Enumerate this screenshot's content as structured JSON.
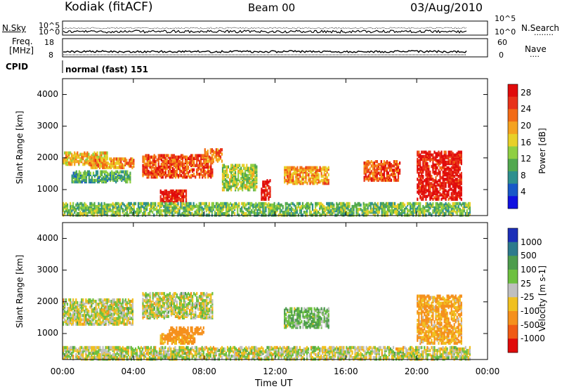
{
  "header": {
    "station": "Kodiak (fitACF)",
    "beam": "Beam 00",
    "date": "03/Aug/2010"
  },
  "strip_labels": {
    "nsky": "N.Sky",
    "nsearch": "N.Search",
    "nsearch_marker": "........",
    "freq_line1": "Freq.",
    "freq_line2": "[MHz]",
    "nave": "Nave",
    "nave_marker": "....",
    "cpid": "CPID",
    "cpid_value": "normal (fast) 151"
  },
  "strip_ticks": {
    "noise_left": [
      "10^5",
      "10^0"
    ],
    "noise_right": [
      "10^5",
      "10^0"
    ],
    "freq_left": [
      "18",
      "8"
    ],
    "nave_right": [
      "60",
      "0"
    ]
  },
  "chart_data": [
    {
      "type": "heatmap",
      "name": "power",
      "ylabel": "Slant Range [km]",
      "ylim": [
        180,
        4500
      ],
      "y_ticks": [
        1000,
        2000,
        3000,
        4000
      ],
      "x_ticks": [
        "00:00",
        "04:00",
        "08:00",
        "12:00",
        "16:00",
        "20:00",
        "00:00"
      ],
      "xlim_hours": [
        0,
        24
      ],
      "colorbar": {
        "label": "Power [dB]",
        "ticks": [
          "4",
          "8",
          "12",
          "16",
          "20",
          "24",
          "28"
        ],
        "range": [
          0,
          30
        ],
        "colors": [
          "#1010e0",
          "#1858c8",
          "#2e8f8e",
          "#52a84f",
          "#8fcf42",
          "#e8d028",
          "#f5a21f",
          "#f26b16",
          "#e8321a",
          "#e00b0b"
        ]
      },
      "regions": [
        {
          "t": [
            0,
            2.5
          ],
          "r": [
            1800,
            2200
          ],
          "value": 18
        },
        {
          "t": [
            0.5,
            3.8
          ],
          "r": [
            1250,
            1600
          ],
          "value": 10
        },
        {
          "t": [
            1.5,
            4
          ],
          "r": [
            1700,
            2000
          ],
          "value": 20
        },
        {
          "t": [
            4.5,
            8.5
          ],
          "r": [
            1400,
            2100
          ],
          "value": 24
        },
        {
          "t": [
            5.5,
            7
          ],
          "r": [
            600,
            1000
          ],
          "value": 28
        },
        {
          "t": [
            8,
            9
          ],
          "r": [
            1900,
            2300
          ],
          "value": 22
        },
        {
          "t": [
            9,
            11
          ],
          "r": [
            1000,
            1800
          ],
          "value": 14
        },
        {
          "t": [
            11.2,
            11.7
          ],
          "r": [
            700,
            1300
          ],
          "value": 28
        },
        {
          "t": [
            12.5,
            15
          ],
          "r": [
            1200,
            1700
          ],
          "value": 20
        },
        {
          "t": [
            17,
            19
          ],
          "r": [
            1300,
            1900
          ],
          "value": 24
        },
        {
          "t": [
            20,
            22.5
          ],
          "r": [
            700,
            2200
          ],
          "value": 28
        },
        {
          "t": [
            0,
            23
          ],
          "r": [
            200,
            600
          ],
          "value": 12
        }
      ]
    },
    {
      "type": "heatmap",
      "name": "velocity",
      "ylabel": "Slant Range [km]",
      "ylim": [
        180,
        4500
      ],
      "y_ticks": [
        1000,
        2000,
        3000,
        4000
      ],
      "x_ticks": [
        "00:00",
        "04:00",
        "08:00",
        "12:00",
        "16:00",
        "20:00",
        "00:00"
      ],
      "xlabel": "Time UT",
      "xlim_hours": [
        0,
        24
      ],
      "colorbar": {
        "label": "Velocity [m s-1]",
        "ticks": [
          "1000",
          "500",
          "100",
          "25",
          "-25",
          "-100",
          "-500",
          "-1000"
        ],
        "colors": [
          "#1c2fb8",
          "#2d7a8c",
          "#4d9c4d",
          "#6dc040",
          "#bfbfbf",
          "#f0c020",
          "#f5901c",
          "#f05a14",
          "#e00a0a"
        ]
      },
      "regions": [
        {
          "t": [
            0,
            4
          ],
          "r": [
            1300,
            2100
          ],
          "value": 0
        },
        {
          "t": [
            4.5,
            8.5
          ],
          "r": [
            1500,
            2300
          ],
          "value": 0
        },
        {
          "t": [
            5.5,
            7.5
          ],
          "r": [
            700,
            1000
          ],
          "value": -150
        },
        {
          "t": [
            6,
            8
          ],
          "r": [
            1000,
            1200
          ],
          "value": -300
        },
        {
          "t": [
            12.5,
            15
          ],
          "r": [
            1200,
            1800
          ],
          "value": 80
        },
        {
          "t": [
            20,
            22.5
          ],
          "r": [
            700,
            2200
          ],
          "value": -120
        },
        {
          "t": [
            0,
            23
          ],
          "r": [
            200,
            600
          ],
          "value": 0
        }
      ]
    }
  ]
}
